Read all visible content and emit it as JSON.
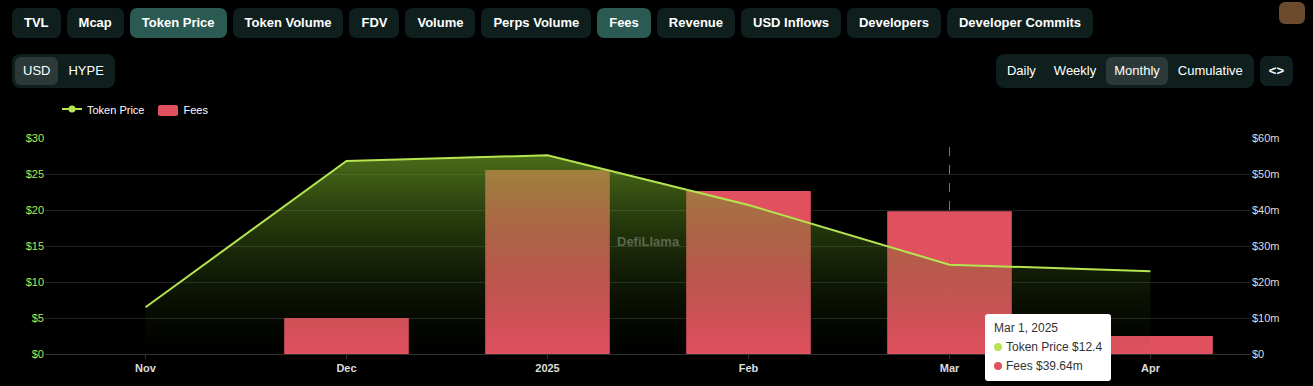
{
  "toolbar": {
    "metrics": [
      {
        "label": "TVL",
        "active": false
      },
      {
        "label": "Mcap",
        "active": false
      },
      {
        "label": "Token Price",
        "active": true
      },
      {
        "label": "Token Volume",
        "active": false
      },
      {
        "label": "FDV",
        "active": false
      },
      {
        "label": "Volume",
        "active": false
      },
      {
        "label": "Perps Volume",
        "active": false
      },
      {
        "label": "Fees",
        "active": true
      },
      {
        "label": "Revenue",
        "active": false
      },
      {
        "label": "USD Inflows",
        "active": false
      },
      {
        "label": "Developers",
        "active": false
      },
      {
        "label": "Developer Commits",
        "active": false
      }
    ],
    "units": [
      {
        "label": "USD",
        "active": true
      },
      {
        "label": "HYPE",
        "active": false
      }
    ],
    "intervals": [
      {
        "label": "Daily",
        "active": false
      },
      {
        "label": "Weekly",
        "active": false
      },
      {
        "label": "Monthly",
        "active": true
      },
      {
        "label": "Cumulative",
        "active": false
      }
    ],
    "embed": "<>"
  },
  "chart_data": {
    "type": "bar",
    "categories": [
      "Nov",
      "Dec",
      "2025",
      "Feb",
      "Mar",
      "Apr"
    ],
    "series": [
      {
        "name": "Token Price",
        "type": "line",
        "color": "#b5e550",
        "values": [
          6.5,
          26.8,
          27.6,
          20.7,
          12.4,
          11.5
        ]
      },
      {
        "name": "Fees",
        "type": "bar",
        "color": "#e0505f",
        "axis": "y2",
        "values": [
          null,
          10,
          51.1,
          45.3,
          39.64,
          5
        ]
      }
    ],
    "ylim": [
      0,
      30
    ],
    "yticks": [
      {
        "value": 0,
        "label": "$0"
      },
      {
        "value": 5,
        "label": "$5"
      },
      {
        "value": 10,
        "label": "$10"
      },
      {
        "value": 15,
        "label": "$15"
      },
      {
        "value": 20,
        "label": "$20"
      },
      {
        "value": 25,
        "label": "$25"
      },
      {
        "value": 30,
        "label": "$30"
      }
    ],
    "y2lim": [
      0,
      60
    ],
    "y2ticks": [
      {
        "value": 0,
        "label": "$0"
      },
      {
        "value": 10,
        "label": "$10m"
      },
      {
        "value": 20,
        "label": "$20m"
      },
      {
        "value": 30,
        "label": "$30m"
      },
      {
        "value": 40,
        "label": "$40m"
      },
      {
        "value": 50,
        "label": "$50m"
      },
      {
        "value": 60,
        "label": "$60m"
      }
    ],
    "grid": true,
    "legend": "top left",
    "annotations": [
      {
        "text": "DefiLlama"
      }
    ]
  },
  "tooltip": {
    "category": "Mar",
    "title": "Mar 1, 2025",
    "rows": [
      {
        "series": "Token Price",
        "text": "$12.4"
      },
      {
        "series": "Fees",
        "text": "$39.64m"
      }
    ]
  }
}
